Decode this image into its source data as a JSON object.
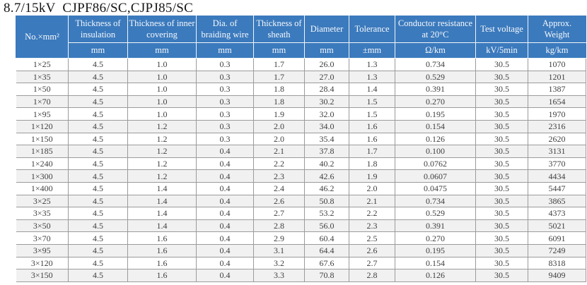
{
  "title": "8.7/15kV  CJPF86/SC,CJPJ85/SC",
  "colors": {
    "header_blue": "#3b7abd",
    "header_text": "#f7f9fc",
    "header_line": "#f2f5f9",
    "grid_line": "#9b9b9b",
    "cell_text": "#3f3f3f",
    "stripe": "#f1f1f1"
  },
  "table": {
    "columns": [
      {
        "label": "No.×mm²",
        "unit": ""
      },
      {
        "label": "Thickness of insulation",
        "unit": "mm"
      },
      {
        "label": "Thickness of inner covering",
        "unit": "mm"
      },
      {
        "label": "Dia. of braiding wire",
        "unit": "mm"
      },
      {
        "label": "Thickness of sheath",
        "unit": "mm"
      },
      {
        "label": "Diameter",
        "unit": "mm"
      },
      {
        "label": "Tolerance",
        "unit": "±mm"
      },
      {
        "label": "Conductor resistance at 20°C",
        "unit": "Ω/km"
      },
      {
        "label": "Test voltage",
        "unit": "kV/5min"
      },
      {
        "label": "Approx. Weight",
        "unit": "kg/km"
      }
    ],
    "rows": [
      [
        "1×25",
        "4.5",
        "1.0",
        "0.3",
        "1.7",
        "26.0",
        "1.3",
        "0.734",
        "30.5",
        "1070"
      ],
      [
        "1×35",
        "4.5",
        "1.0",
        "0.3",
        "1.7",
        "27.0",
        "1.3",
        "0.529",
        "30.5",
        "1201"
      ],
      [
        "1×50",
        "4.5",
        "1.0",
        "0.3",
        "1.8",
        "28.4",
        "1.4",
        "0.391",
        "30.5",
        "1387"
      ],
      [
        "1×70",
        "4.5",
        "1.0",
        "0.3",
        "1.8",
        "30.2",
        "1.5",
        "0.270",
        "30.5",
        "1654"
      ],
      [
        "1×95",
        "4.5",
        "1.0",
        "0.3",
        "1.9",
        "32.0",
        "1.5",
        "0.195",
        "30.5",
        "1970"
      ],
      [
        "1×120",
        "4.5",
        "1.2",
        "0.3",
        "2.0",
        "34.0",
        "1.6",
        "0.154",
        "30.5",
        "2316"
      ],
      [
        "1×150",
        "4.5",
        "1.2",
        "0.3",
        "2.0",
        "35.4",
        "1.6",
        "0.126",
        "30.5",
        "2620"
      ],
      [
        "1×185",
        "4.5",
        "1.2",
        "0.4",
        "2.1",
        "37.8",
        "1.7",
        "0.100",
        "30.5",
        "3131"
      ],
      [
        "1×240",
        "4.5",
        "1.2",
        "0.4",
        "2.2",
        "40.2",
        "1.8",
        "0.0762",
        "30.5",
        "3770"
      ],
      [
        "1×300",
        "4.5",
        "1.2",
        "0.4",
        "2.3",
        "42.6",
        "1.9",
        "0.0607",
        "30.5",
        "4434"
      ],
      [
        "1×400",
        "4.5",
        "1.4",
        "0.4",
        "2.4",
        "46.2",
        "2.0",
        "0.0475",
        "30.5",
        "5447"
      ],
      [
        "3×25",
        "4.5",
        "1.4",
        "0.4",
        "2.6",
        "50.8",
        "2.1",
        "0.734",
        "30.5",
        "3865"
      ],
      [
        "3×35",
        "4.5",
        "1.4",
        "0.4",
        "2.7",
        "53.2",
        "2.2",
        "0.529",
        "30.5",
        "4373"
      ],
      [
        "3×50",
        "4.5",
        "1.4",
        "0.4",
        "2.8",
        "56.0",
        "2.3",
        "0.391",
        "30.5",
        "5021"
      ],
      [
        "3×70",
        "4.5",
        "1.6",
        "0.4",
        "2.9",
        "60.4",
        "2.5",
        "0.270",
        "30.5",
        "6091"
      ],
      [
        "3×95",
        "4.5",
        "1.6",
        "0.4",
        "3.1",
        "64.4",
        "2.6",
        "0.195",
        "30.5",
        "7249"
      ],
      [
        "3×120",
        "4.5",
        "1.6",
        "0.4",
        "3.2",
        "67.6",
        "2.7",
        "0.154",
        "30.5",
        "8318"
      ],
      [
        "3×150",
        "4.5",
        "1.6",
        "0.4",
        "3.3",
        "70.8",
        "2.8",
        "0.126",
        "30.5",
        "9409"
      ]
    ]
  }
}
